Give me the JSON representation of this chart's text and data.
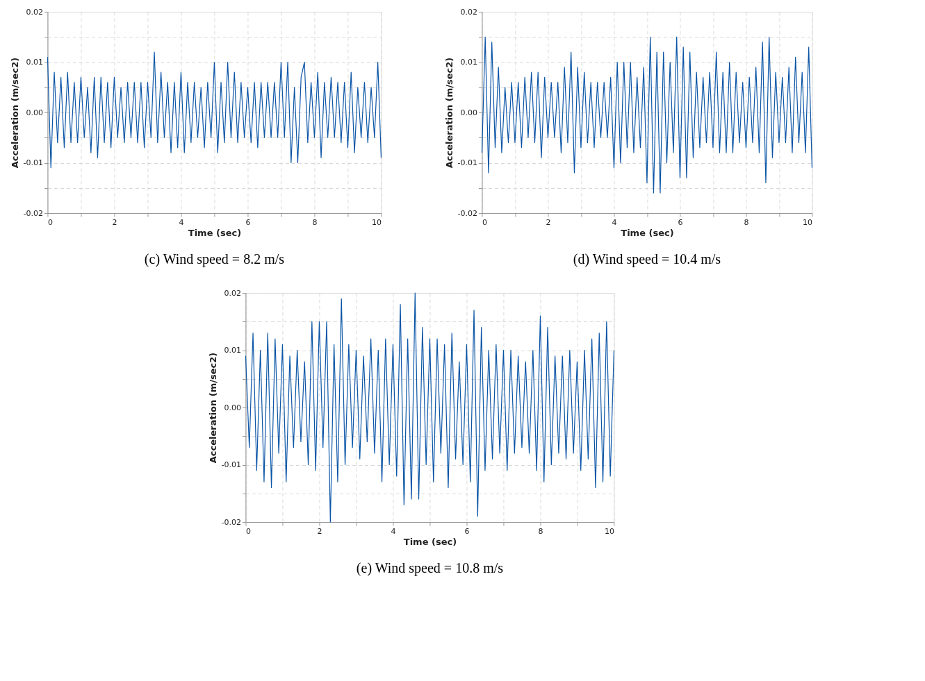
{
  "chart_data": [
    {
      "type": "line",
      "title": "(c) Wind speed = 8.2 m/s",
      "xlabel": "Time (sec)",
      "ylabel": "Acceleration (m/sec2)",
      "x": [
        0,
        0.1,
        0.2,
        0.3,
        0.4,
        0.5,
        0.6,
        0.7,
        0.8,
        0.9,
        1,
        1.1,
        1.2,
        1.3,
        1.4,
        1.5,
        1.6,
        1.7,
        1.8,
        1.9,
        2,
        2.1,
        2.2,
        2.3,
        2.4,
        2.5,
        2.6,
        2.7,
        2.8,
        2.9,
        3,
        3.1,
        3.2,
        3.3,
        3.4,
        3.5,
        3.6,
        3.7,
        3.8,
        3.9,
        4,
        4.1,
        4.2,
        4.3,
        4.4,
        4.5,
        4.6,
        4.7,
        4.8,
        4.9,
        5,
        5.1,
        5.2,
        5.3,
        5.4,
        5.5,
        5.6,
        5.7,
        5.8,
        5.9,
        6,
        6.1,
        6.2,
        6.3,
        6.4,
        6.5,
        6.6,
        6.7,
        6.8,
        6.9,
        7,
        7.1,
        7.2,
        7.3,
        7.4,
        7.5,
        7.6,
        7.7,
        7.8,
        7.9,
        8,
        8.1,
        8.2,
        8.3,
        8.4,
        8.5,
        8.6,
        8.7,
        8.8,
        8.9,
        9,
        9.1,
        9.2,
        9.3,
        9.4,
        9.5,
        9.6,
        9.7,
        9.8,
        9.9,
        10
      ],
      "series": [
        {
          "color": "#0b55a6",
          "values": [
            0.011,
            -0.011,
            0.008,
            -0.006,
            0.007,
            -0.007,
            0.008,
            -0.006,
            0.006,
            -0.006,
            0.007,
            -0.005,
            0.005,
            -0.008,
            0.007,
            -0.009,
            0.007,
            -0.006,
            0.006,
            -0.007,
            0.007,
            -0.005,
            0.005,
            -0.006,
            0.006,
            -0.005,
            0.006,
            -0.006,
            0.006,
            -0.007,
            0.006,
            -0.005,
            0.012,
            -0.006,
            0.008,
            -0.005,
            0.006,
            -0.008,
            0.006,
            -0.007,
            0.008,
            -0.008,
            0.006,
            -0.006,
            0.006,
            -0.005,
            0.005,
            -0.007,
            0.006,
            -0.005,
            0.01,
            -0.008,
            0.006,
            -0.006,
            0.01,
            -0.005,
            0.008,
            -0.006,
            0.006,
            -0.005,
            0.005,
            -0.006,
            0.006,
            -0.007,
            0.006,
            -0.005,
            0.006,
            -0.005,
            0.006,
            -0.005,
            0.01,
            -0.005,
            0.01,
            -0.01,
            0.005,
            -0.01,
            0.007,
            0.01,
            -0.006,
            0.006,
            -0.005,
            0.008,
            -0.009,
            0.006,
            -0.005,
            0.007,
            -0.005,
            0.006,
            -0.006,
            0.006,
            -0.007,
            0.008,
            -0.008,
            0.005,
            -0.005,
            0.006,
            -0.006,
            0.005,
            -0.005,
            0.01,
            -0.009
          ]
        }
      ],
      "xlim": [
        0,
        10
      ],
      "ylim": [
        -0.02,
        0.02
      ],
      "xticks": [
        0,
        {
          "value": 1,
          "label": null
        },
        2,
        {
          "value": 3,
          "label": null
        },
        4,
        {
          "value": 5,
          "label": null
        },
        6,
        {
          "value": 7,
          "label": null
        },
        8,
        {
          "value": 9,
          "label": null
        },
        10
      ],
      "yticks": [
        {
          "value": -0.02,
          "label": "-0.02"
        },
        {
          "value": -0.015,
          "label": null
        },
        {
          "value": -0.01,
          "label": "-0.01"
        },
        {
          "value": -0.005,
          "label": null
        },
        {
          "value": 0,
          "label": "0.00"
        },
        {
          "value": 0.005,
          "label": null
        },
        {
          "value": 0.01,
          "label": "0.01"
        },
        {
          "value": 0.015,
          "label": null
        },
        {
          "value": 0.02,
          "label": "0.02"
        }
      ],
      "grid": true,
      "marker": "none",
      "line_style": "solid"
    },
    {
      "type": "line",
      "title": "(d) Wind speed = 10.4 m/s",
      "xlabel": "Time (sec)",
      "ylabel": "Acceleration (m/sec2)",
      "x": [
        0,
        0.1,
        0.2,
        0.3,
        0.4,
        0.5,
        0.6,
        0.7,
        0.8,
        0.9,
        1,
        1.1,
        1.2,
        1.3,
        1.4,
        1.5,
        1.6,
        1.7,
        1.8,
        1.9,
        2,
        2.1,
        2.2,
        2.3,
        2.4,
        2.5,
        2.6,
        2.7,
        2.8,
        2.9,
        3,
        3.1,
        3.2,
        3.3,
        3.4,
        3.5,
        3.6,
        3.7,
        3.8,
        3.9,
        4,
        4.1,
        4.2,
        4.3,
        4.4,
        4.5,
        4.6,
        4.7,
        4.8,
        4.9,
        5,
        5.1,
        5.2,
        5.3,
        5.4,
        5.5,
        5.6,
        5.7,
        5.8,
        5.9,
        6,
        6.1,
        6.2,
        6.3,
        6.4,
        6.5,
        6.6,
        6.7,
        6.8,
        6.9,
        7,
        7.1,
        7.2,
        7.3,
        7.4,
        7.5,
        7.6,
        7.7,
        7.8,
        7.9,
        8,
        8.1,
        8.2,
        8.3,
        8.4,
        8.5,
        8.6,
        8.7,
        8.8,
        8.9,
        9,
        9.1,
        9.2,
        9.3,
        9.4,
        9.5,
        9.6,
        9.7,
        9.8,
        9.9,
        10
      ],
      "series": [
        {
          "color": "#0b55a6",
          "values": [
            -0.008,
            0.015,
            -0.012,
            0.014,
            -0.007,
            0.009,
            -0.008,
            0.005,
            -0.006,
            0.006,
            -0.006,
            0.006,
            -0.007,
            0.007,
            -0.005,
            0.008,
            -0.006,
            0.008,
            -0.009,
            0.007,
            -0.005,
            0.006,
            -0.005,
            0.006,
            -0.008,
            0.009,
            -0.006,
            0.012,
            -0.012,
            0.009,
            -0.007,
            0.008,
            -0.006,
            0.006,
            -0.007,
            0.006,
            -0.005,
            0.006,
            -0.005,
            0.007,
            -0.011,
            0.01,
            -0.01,
            0.01,
            -0.007,
            0.01,
            -0.008,
            0.007,
            -0.007,
            0.009,
            -0.014,
            0.015,
            -0.016,
            0.012,
            -0.016,
            0.012,
            -0.01,
            0.01,
            -0.008,
            0.015,
            -0.013,
            0.013,
            -0.013,
            0.012,
            -0.009,
            0.008,
            -0.007,
            0.007,
            -0.006,
            0.008,
            -0.007,
            0.012,
            -0.008,
            0.008,
            -0.008,
            0.01,
            -0.008,
            0.008,
            -0.006,
            0.006,
            -0.007,
            0.007,
            -0.006,
            0.009,
            -0.008,
            0.014,
            -0.014,
            0.015,
            -0.009,
            0.008,
            -0.006,
            0.007,
            -0.006,
            0.009,
            -0.008,
            0.011,
            -0.006,
            0.008,
            -0.008,
            0.013,
            -0.011
          ]
        }
      ],
      "xlim": [
        0,
        10
      ],
      "ylim": [
        -0.02,
        0.02
      ],
      "xticks": [
        0,
        {
          "value": 1,
          "label": null
        },
        2,
        {
          "value": 3,
          "label": null
        },
        4,
        {
          "value": 5,
          "label": null
        },
        6,
        {
          "value": 7,
          "label": null
        },
        8,
        {
          "value": 9,
          "label": null
        },
        10
      ],
      "yticks": [
        {
          "value": -0.02,
          "label": "-0.02"
        },
        {
          "value": -0.015,
          "label": null
        },
        {
          "value": -0.01,
          "label": "-0.01"
        },
        {
          "value": -0.005,
          "label": null
        },
        {
          "value": 0,
          "label": "0.00"
        },
        {
          "value": 0.005,
          "label": null
        },
        {
          "value": 0.01,
          "label": "0.01"
        },
        {
          "value": 0.015,
          "label": null
        },
        {
          "value": 0.02,
          "label": "0.02"
        }
      ],
      "grid": true,
      "marker": "none",
      "line_style": "solid"
    },
    {
      "type": "line",
      "title": "(e) Wind speed = 10.8 m/s",
      "xlabel": "Time (sec)",
      "ylabel": "Acceleration (m/sec2)",
      "x": [
        0,
        0.1,
        0.2,
        0.3,
        0.4,
        0.5,
        0.6,
        0.7,
        0.8,
        0.9,
        1,
        1.1,
        1.2,
        1.3,
        1.4,
        1.5,
        1.6,
        1.7,
        1.8,
        1.9,
        2,
        2.1,
        2.2,
        2.3,
        2.4,
        2.5,
        2.6,
        2.7,
        2.8,
        2.9,
        3,
        3.1,
        3.2,
        3.3,
        3.4,
        3.5,
        3.6,
        3.7,
        3.8,
        3.9,
        4,
        4.1,
        4.2,
        4.3,
        4.4,
        4.5,
        4.6,
        4.7,
        4.8,
        4.9,
        5,
        5.1,
        5.2,
        5.3,
        5.4,
        5.5,
        5.6,
        5.7,
        5.8,
        5.9,
        6,
        6.1,
        6.2,
        6.3,
        6.4,
        6.5,
        6.6,
        6.7,
        6.8,
        6.9,
        7,
        7.1,
        7.2,
        7.3,
        7.4,
        7.5,
        7.6,
        7.7,
        7.8,
        7.9,
        8,
        8.1,
        8.2,
        8.3,
        8.4,
        8.5,
        8.6,
        8.7,
        8.8,
        8.9,
        9,
        9.1,
        9.2,
        9.3,
        9.4,
        9.5,
        9.6,
        9.7,
        9.8,
        9.9,
        10
      ],
      "series": [
        {
          "color": "#0b55a6",
          "values": [
            0.009,
            -0.007,
            0.013,
            -0.011,
            0.01,
            -0.013,
            0.013,
            -0.014,
            0.012,
            -0.008,
            0.011,
            -0.013,
            0.009,
            -0.007,
            0.01,
            -0.006,
            0.008,
            -0.01,
            0.015,
            -0.011,
            0.015,
            -0.007,
            0.015,
            -0.02,
            0.011,
            -0.013,
            0.019,
            -0.01,
            0.011,
            -0.007,
            0.01,
            -0.009,
            0.009,
            -0.006,
            0.012,
            -0.008,
            0.01,
            -0.013,
            0.012,
            -0.01,
            0.011,
            -0.012,
            0.018,
            -0.017,
            0.012,
            -0.016,
            0.02,
            -0.016,
            0.014,
            -0.01,
            0.012,
            -0.013,
            0.012,
            -0.008,
            0.011,
            -0.014,
            0.013,
            -0.009,
            0.008,
            -0.01,
            0.011,
            -0.013,
            0.017,
            -0.019,
            0.014,
            -0.011,
            0.01,
            -0.009,
            0.011,
            -0.008,
            0.01,
            -0.011,
            0.01,
            -0.008,
            0.009,
            -0.007,
            0.008,
            -0.008,
            0.01,
            -0.011,
            0.016,
            -0.013,
            0.014,
            -0.01,
            0.009,
            -0.008,
            0.009,
            -0.009,
            0.01,
            -0.008,
            0.008,
            -0.011,
            0.01,
            -0.009,
            0.012,
            -0.014,
            0.013,
            -0.013,
            0.015,
            -0.012,
            0.01
          ]
        }
      ],
      "xlim": [
        0,
        10
      ],
      "ylim": [
        -0.02,
        0.02
      ],
      "xticks": [
        0,
        {
          "value": 1,
          "label": null
        },
        2,
        {
          "value": 3,
          "label": null
        },
        4,
        {
          "value": 5,
          "label": null
        },
        6,
        {
          "value": 7,
          "label": null
        },
        8,
        {
          "value": 9,
          "label": null
        },
        10
      ],
      "yticks": [
        {
          "value": -0.02,
          "label": "-0.02"
        },
        {
          "value": -0.015,
          "label": null
        },
        {
          "value": -0.01,
          "label": "-0.01"
        },
        {
          "value": -0.005,
          "label": null
        },
        {
          "value": 0,
          "label": "0.00"
        },
        {
          "value": 0.005,
          "label": null
        },
        {
          "value": 0.01,
          "label": "0.01"
        },
        {
          "value": 0.015,
          "label": null
        },
        {
          "value": 0.02,
          "label": "0.02"
        }
      ],
      "grid": true,
      "marker": "none",
      "line_style": "solid"
    }
  ]
}
